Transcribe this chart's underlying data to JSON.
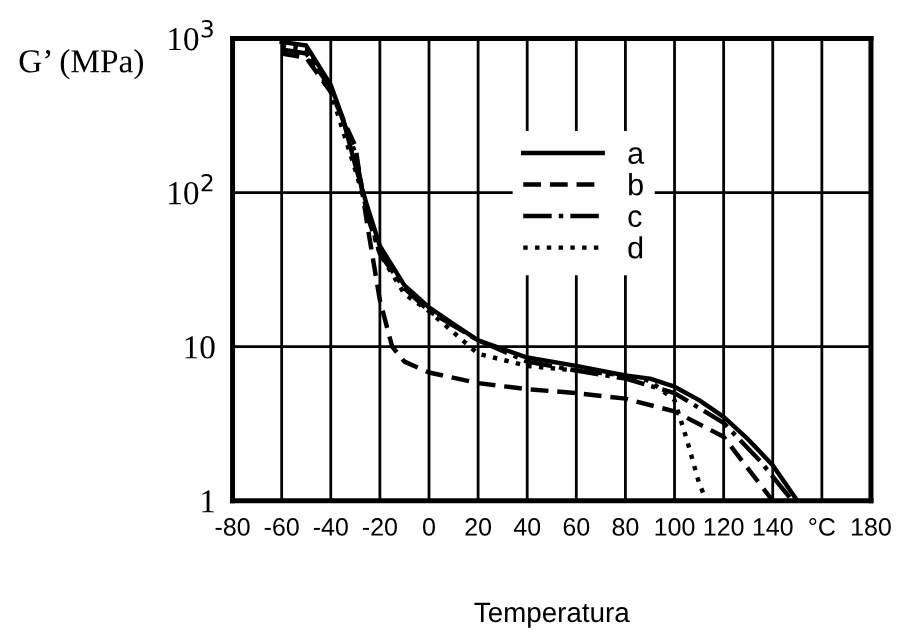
{
  "chart_data": {
    "type": "line",
    "xlabel": "Temperatura",
    "ylabel": "G’ (MPa)",
    "log": "y",
    "grid": true,
    "legend": "top",
    "marker": "none",
    "xlim": [
      -80,
      180
    ],
    "xticks": [
      -80,
      -60,
      -40,
      -20,
      0,
      20,
      40,
      60,
      80,
      100,
      120,
      140,
      {
        "value": 160,
        "label": "°C"
      },
      180
    ],
    "ylim": [
      1,
      1000
    ],
    "yticks": [
      {
        "value": 1,
        "label": "1"
      },
      {
        "value": 10,
        "label": "10"
      },
      {
        "value": 100,
        "label": "10$^{2}$"
      },
      {
        "value": 1000,
        "label": "10$^{3}$"
      }
    ],
    "series": [
      {
        "name": "a",
        "color": "#000000",
        "line_style": "solid",
        "x": [
          -60,
          -50,
          -40,
          -35,
          -30,
          -25,
          -20,
          -10,
          0,
          10,
          20,
          40,
          60,
          80,
          90,
          100,
          110,
          120,
          130,
          140,
          150
        ],
        "values": [
          950,
          900,
          500,
          300,
          150,
          80,
          45,
          25,
          18,
          14,
          11,
          8.5,
          7.5,
          6.5,
          6.2,
          5.5,
          4.5,
          3.5,
          2.5,
          1.7,
          1
        ]
      },
      {
        "name": "b",
        "color": "#000000",
        "line_style": "dashed",
        "x": [
          -60,
          -50,
          -40,
          -30,
          -25,
          -20,
          -15,
          -10,
          0,
          20,
          40,
          60,
          80,
          100,
          120,
          140
        ],
        "values": [
          800,
          750,
          450,
          200,
          60,
          20,
          10,
          8,
          6.8,
          5.8,
          5.3,
          5,
          4.6,
          3.8,
          2.6,
          1
        ]
      },
      {
        "name": "c",
        "color": "#000000",
        "line_style": "dashdot",
        "x": [
          -60,
          -50,
          -40,
          -30,
          -25,
          -20,
          -10,
          0,
          20,
          40,
          60,
          80,
          100,
          120,
          135,
          148
        ],
        "values": [
          850,
          800,
          480,
          180,
          70,
          40,
          24,
          17,
          11,
          8,
          7,
          6.2,
          5,
          3.2,
          1.8,
          1
        ]
      },
      {
        "name": "d",
        "color": "#000000",
        "line_style": "dotted",
        "x": [
          -60,
          -50,
          -40,
          -30,
          -20,
          -10,
          0,
          20,
          40,
          60,
          80,
          90,
          100,
          105,
          110,
          113
        ],
        "values": [
          900,
          850,
          450,
          140,
          40,
          22,
          17,
          9,
          7.5,
          7,
          6.5,
          6,
          4.5,
          2.5,
          1.3,
          1
        ]
      }
    ]
  }
}
